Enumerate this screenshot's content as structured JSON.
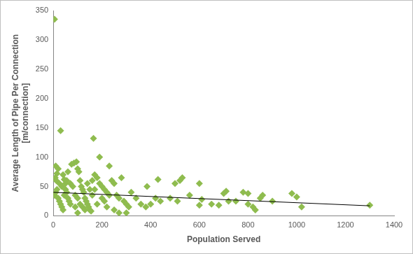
{
  "chart_data": {
    "type": "scatter",
    "x_label": "Population Served",
    "y_label": [
      "Average Length of Pipe Per Connection",
      "[m/connection]"
    ],
    "xlim": [
      0,
      1400
    ],
    "xticks": [
      0,
      200,
      400,
      600,
      800,
      1000,
      1200,
      1400
    ],
    "ylim": [
      0,
      350
    ],
    "yticks": [
      0,
      50,
      100,
      150,
      200,
      250,
      300,
      350
    ],
    "grid": false,
    "series": [
      {
        "type": "scatter",
        "color": "#8fbc4f",
        "marker": "diamond",
        "x": [
          5,
          30,
          165,
          190,
          10,
          20,
          15,
          8,
          12,
          25,
          35,
          40,
          45,
          50,
          55,
          60,
          65,
          70,
          5,
          10,
          15,
          20,
          25,
          30,
          35,
          40,
          45,
          50,
          55,
          75,
          85,
          95,
          100,
          105,
          110,
          115,
          120,
          125,
          130,
          135,
          140,
          145,
          150,
          155,
          80,
          90,
          100,
          110,
          120,
          130,
          100,
          170,
          180,
          190,
          200,
          210,
          220,
          230,
          240,
          250,
          260,
          270,
          280,
          290,
          300,
          310,
          200,
          210,
          220,
          180,
          160,
          170,
          250,
          270,
          300,
          340,
          360,
          380,
          385,
          400,
          420,
          430,
          440,
          480,
          500,
          510,
          520,
          530,
          560,
          600,
          600,
          610,
          650,
          680,
          700,
          710,
          720,
          750,
          780,
          800,
          800,
          820,
          830,
          850,
          860,
          900,
          980,
          1000,
          1020,
          1300,
          60,
          70,
          90,
          140,
          150,
          160,
          230,
          320
        ],
        "values": [
          335,
          145,
          132,
          100,
          85,
          80,
          72,
          65,
          60,
          55,
          50,
          70,
          62,
          45,
          40,
          30,
          25,
          20,
          35,
          40,
          45,
          30,
          25,
          20,
          15,
          10,
          35,
          55,
          60,
          88,
          90,
          92,
          80,
          75,
          60,
          50,
          45,
          40,
          30,
          25,
          20,
          15,
          10,
          8,
          50,
          35,
          30,
          20,
          15,
          10,
          5,
          70,
          65,
          55,
          50,
          45,
          40,
          85,
          60,
          55,
          35,
          30,
          65,
          25,
          20,
          15,
          30,
          25,
          15,
          20,
          35,
          45,
          10,
          5,
          5,
          30,
          20,
          15,
          50,
          20,
          30,
          62,
          25,
          30,
          55,
          25,
          60,
          65,
          35,
          55,
          18,
          28,
          20,
          18,
          38,
          42,
          25,
          25,
          40,
          38,
          20,
          15,
          10,
          30,
          35,
          25,
          38,
          32,
          15,
          18,
          75,
          55,
          15,
          55,
          45,
          60,
          35,
          40
        ]
      },
      {
        "type": "line",
        "color": "#000000",
        "line_style": "solid",
        "x": [
          0,
          1300
        ],
        "values": [
          40,
          17
        ]
      }
    ]
  }
}
